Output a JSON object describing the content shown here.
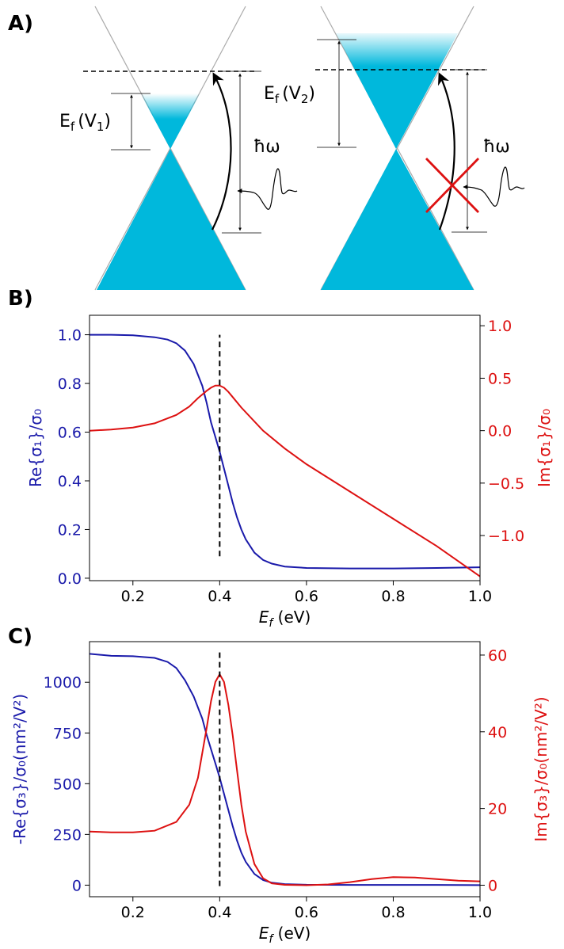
{
  "panel_labels": {
    "a": "A)",
    "b": "B)",
    "c": "C)"
  },
  "diagram": {
    "left_ef_label": "E",
    "left_ef_sub": "f",
    "left_ef_paren": "(V",
    "left_ef_idx": "1",
    "left_ef_close": ")",
    "right_ef_label": "E",
    "right_ef_sub": "f",
    "right_ef_paren": "(V",
    "right_ef_idx": "2",
    "right_ef_close": ")",
    "photon_label_left": "ħω",
    "photon_label_right": "ħω",
    "colors": {
      "band": "#00b8dc",
      "cross": "#dd1111"
    }
  },
  "chart_data": [
    {
      "type": "line",
      "panel": "B",
      "xlabel_main": "E",
      "xlabel_sub": "f",
      "xlabel_unit": " (eV)",
      "xlim": [
        0.1,
        1.0
      ],
      "x_ticks": [
        {
          "v": 0.2,
          "label": "0.2"
        },
        {
          "v": 0.4,
          "label": "0.4"
        },
        {
          "v": 0.6,
          "label": "0.6"
        },
        {
          "v": 0.8,
          "label": "0.8"
        },
        {
          "v": 1.0,
          "label": "1.0"
        }
      ],
      "ylabel_left": "Re{σ₁}/σ₀",
      "ylabel_right": "Im{σ₁}/σ₀",
      "ylim_left": [
        -0.01,
        1.08
      ],
      "ylim_right": [
        -1.43,
        1.1
      ],
      "y_ticks_left": [
        {
          "v": 0.0,
          "label": "0.0"
        },
        {
          "v": 0.2,
          "label": "0.2"
        },
        {
          "v": 0.4,
          "label": "0.4"
        },
        {
          "v": 0.6,
          "label": "0.6"
        },
        {
          "v": 0.8,
          "label": "0.8"
        },
        {
          "v": 1.0,
          "label": "1.0"
        }
      ],
      "y_ticks_right": [
        {
          "v": 1.0,
          "label": "1.0"
        },
        {
          "v": 0.5,
          "label": "0.5"
        },
        {
          "v": 0.0,
          "label": "0.0"
        },
        {
          "v": -0.5,
          "label": "−0.5"
        },
        {
          "v": -1.0,
          "label": "−1.0"
        }
      ],
      "vline": {
        "x": 0.4,
        "from": 0.09,
        "to": 1.0
      },
      "series": [
        {
          "name": "Re{σ1}/σ0",
          "axis": "left",
          "color": "#1a1aaa",
          "x": [
            0.1,
            0.15,
            0.2,
            0.25,
            0.28,
            0.3,
            0.32,
            0.34,
            0.36,
            0.37,
            0.38,
            0.39,
            0.4,
            0.41,
            0.42,
            0.43,
            0.44,
            0.45,
            0.46,
            0.48,
            0.5,
            0.52,
            0.55,
            0.6,
            0.7,
            0.8,
            0.9,
            1.0
          ],
          "y": [
            1.0,
            1.0,
            0.998,
            0.99,
            0.98,
            0.965,
            0.935,
            0.88,
            0.79,
            0.72,
            0.64,
            0.58,
            0.52,
            0.45,
            0.38,
            0.31,
            0.25,
            0.2,
            0.16,
            0.105,
            0.075,
            0.06,
            0.048,
            0.042,
            0.04,
            0.04,
            0.042,
            0.045
          ]
        },
        {
          "name": "Im{σ1}/σ0",
          "axis": "right",
          "color": "#dd1111",
          "x": [
            0.1,
            0.15,
            0.2,
            0.25,
            0.3,
            0.33,
            0.35,
            0.37,
            0.38,
            0.39,
            0.4,
            0.41,
            0.42,
            0.43,
            0.45,
            0.5,
            0.55,
            0.6,
            0.7,
            0.8,
            0.9,
            1.0
          ],
          "y": [
            0.0,
            0.01,
            0.03,
            0.07,
            0.15,
            0.23,
            0.31,
            0.38,
            0.41,
            0.43,
            0.43,
            0.41,
            0.37,
            0.32,
            0.22,
            0.0,
            -0.17,
            -0.32,
            -0.58,
            -0.84,
            -1.1,
            -1.39
          ]
        }
      ]
    },
    {
      "type": "line",
      "panel": "C",
      "xlabel_main": "E",
      "xlabel_sub": "f",
      "xlabel_unit": " (eV)",
      "xlim": [
        0.1,
        1.0
      ],
      "x_ticks": [
        {
          "v": 0.2,
          "label": "0.2"
        },
        {
          "v": 0.4,
          "label": "0.4"
        },
        {
          "v": 0.6,
          "label": "0.6"
        },
        {
          "v": 0.8,
          "label": "0.8"
        },
        {
          "v": 1.0,
          "label": "1.0"
        }
      ],
      "ylabel_left": "-Re{σ₃}/σ₀(nm²/V²)",
      "ylabel_right": "Im{σ₃}/σ₀(nm²/V²)",
      "ylim_left": [
        -57,
        1200
      ],
      "ylim_right": [
        -3,
        63.5
      ],
      "y_ticks_left": [
        {
          "v": 0,
          "label": "0"
        },
        {
          "v": 250,
          "label": "250"
        },
        {
          "v": 500,
          "label": "500"
        },
        {
          "v": 750,
          "label": "750"
        },
        {
          "v": 1000,
          "label": "1000"
        }
      ],
      "y_ticks_right": [
        {
          "v": 0,
          "label": "0"
        },
        {
          "v": 20,
          "label": "20"
        },
        {
          "v": 40,
          "label": "40"
        },
        {
          "v": 60,
          "label": "60"
        }
      ],
      "vline": {
        "x": 0.4,
        "from": -5,
        "to": 1160
      },
      "series": [
        {
          "name": "-Re{σ3}/σ0",
          "axis": "left",
          "color": "#1a1aaa",
          "x": [
            0.1,
            0.15,
            0.2,
            0.25,
            0.28,
            0.3,
            0.32,
            0.34,
            0.36,
            0.37,
            0.38,
            0.39,
            0.4,
            0.41,
            0.42,
            0.43,
            0.44,
            0.45,
            0.46,
            0.48,
            0.5,
            0.52,
            0.55,
            0.6,
            0.7,
            0.8,
            0.9,
            1.0
          ],
          "y": [
            1140,
            1130,
            1128,
            1120,
            1100,
            1070,
            1010,
            930,
            820,
            740,
            670,
            600,
            530,
            450,
            370,
            290,
            220,
            160,
            115,
            55,
            25,
            12,
            5,
            2,
            1,
            1,
            1,
            0
          ]
        },
        {
          "name": "Im{σ3}/σ0",
          "axis": "right",
          "color": "#dd1111",
          "x": [
            0.1,
            0.15,
            0.2,
            0.25,
            0.3,
            0.33,
            0.35,
            0.37,
            0.38,
            0.39,
            0.4,
            0.41,
            0.42,
            0.43,
            0.44,
            0.45,
            0.46,
            0.48,
            0.5,
            0.52,
            0.55,
            0.6,
            0.65,
            0.7,
            0.75,
            0.8,
            0.85,
            0.9,
            0.95,
            1.0
          ],
          "y": [
            14,
            13.8,
            13.8,
            14.2,
            16.5,
            21,
            28,
            41,
            48,
            53,
            55,
            53,
            47,
            39,
            30,
            21,
            14,
            5.5,
            1.8,
            0.5,
            0.1,
            0.0,
            0.2,
            0.8,
            1.6,
            2.1,
            2.0,
            1.6,
            1.2,
            1.0
          ]
        }
      ]
    }
  ]
}
